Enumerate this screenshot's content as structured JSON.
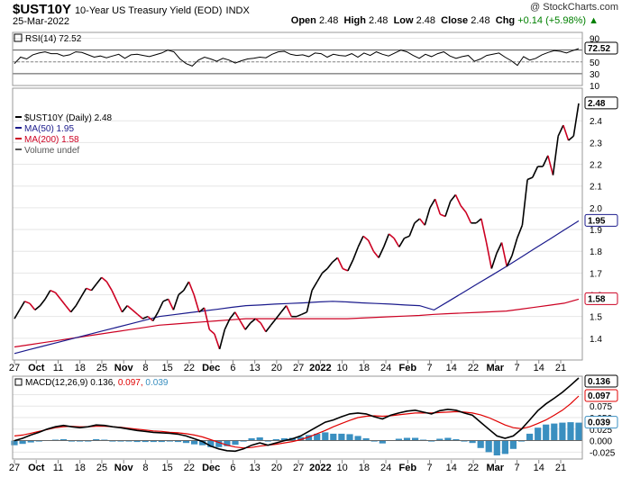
{
  "header": {
    "symbol": "$UST10Y",
    "name": "10-Year US Treasury Yield (EOD)",
    "exchange": "INDX",
    "date": "25-Mar-2022",
    "brand": "@ StockCharts.com",
    "open_label": "Open",
    "open": "2.48",
    "high_label": "High",
    "high": "2.48",
    "low_label": "Low",
    "low": "2.48",
    "close_label": "Close",
    "close": "2.48",
    "chg_label": "Chg",
    "chg": "+0.14 (+5.98%)",
    "chg_arrow": "▲"
  },
  "colors": {
    "price": "#000000",
    "ma50": "#1a1a8c",
    "ma200": "#cc0022",
    "rsi": "#000000",
    "macd": "#000000",
    "signal": "#e00000",
    "hist": "#3a8fc0",
    "grid": "#e6e6e6"
  },
  "chart_data": [
    {
      "type": "line",
      "panel": "rsi",
      "legend": "RSI(14) 72.52",
      "value_badge": "72.52",
      "ylim": [
        10,
        100
      ],
      "yticks": [
        90,
        70,
        50,
        30,
        10
      ],
      "yticklabels": [
        "90",
        "70",
        "50",
        "30",
        "10"
      ],
      "reference_lines": [
        70,
        50,
        30
      ],
      "series": [
        {
          "name": "RSI(14)",
          "values": [
            47,
            58,
            55,
            62,
            65,
            67,
            64,
            64,
            60,
            62,
            67,
            66,
            62,
            58,
            60,
            57,
            60,
            63,
            56,
            62,
            63,
            61,
            59,
            62,
            65,
            70,
            67,
            55,
            47,
            43,
            53,
            58,
            55,
            51,
            56,
            53,
            48,
            52,
            55,
            56,
            58,
            57,
            63,
            67,
            68,
            63,
            61,
            62,
            59,
            65,
            64,
            58,
            63,
            61,
            60,
            64,
            58,
            65,
            61,
            67,
            63,
            60,
            65,
            70,
            67,
            61,
            56,
            63,
            59,
            64,
            67,
            60,
            56,
            59,
            61,
            51,
            55,
            61,
            63,
            65,
            58,
            52,
            44,
            59,
            53,
            56,
            62,
            66,
            69,
            68,
            65,
            69,
            72.52
          ]
        }
      ]
    },
    {
      "type": "line",
      "panel": "price",
      "ylim": [
        1.3,
        2.55
      ],
      "yticks": [
        1.4,
        1.5,
        1.6,
        1.7,
        1.8,
        1.9,
        2.0,
        2.1,
        2.2,
        2.3,
        2.4
      ],
      "yticklabels": [
        "1.4",
        "1.5",
        "1.6",
        "1.7",
        "1.8",
        "1.9",
        "2.0",
        "2.1",
        "2.2",
        "2.3",
        "2.4"
      ],
      "value_badges": [
        "2.48",
        "1.95",
        "1.58"
      ],
      "legend": [
        {
          "label": "$UST10Y (Daily) 2.48",
          "color": "#000000"
        },
        {
          "label": "MA(50) 1.95",
          "color": "#1a1a8c"
        },
        {
          "label": "MA(200) 1.58",
          "color": "#cc0022"
        },
        {
          "label": "Volume undef",
          "color": "#555555"
        }
      ],
      "series": [
        {
          "name": "$UST10Y",
          "values": [
            1.49,
            1.53,
            1.57,
            1.56,
            1.53,
            1.55,
            1.58,
            1.62,
            1.61,
            1.58,
            1.55,
            1.52,
            1.55,
            1.59,
            1.63,
            1.62,
            1.65,
            1.68,
            1.66,
            1.62,
            1.57,
            1.52,
            1.55,
            1.53,
            1.51,
            1.49,
            1.5,
            1.48,
            1.52,
            1.57,
            1.58,
            1.53,
            1.6,
            1.62,
            1.66,
            1.6,
            1.52,
            1.54,
            1.44,
            1.42,
            1.35,
            1.44,
            1.49,
            1.52,
            1.48,
            1.44,
            1.47,
            1.49,
            1.47,
            1.43,
            1.46,
            1.49,
            1.52,
            1.55,
            1.5,
            1.5,
            1.51,
            1.52,
            1.62,
            1.66,
            1.7,
            1.72,
            1.75,
            1.77,
            1.72,
            1.71,
            1.76,
            1.82,
            1.87,
            1.85,
            1.8,
            1.77,
            1.82,
            1.88,
            1.86,
            1.82,
            1.86,
            1.87,
            1.93,
            1.95,
            1.92,
            2.0,
            2.04,
            1.97,
            1.96,
            2.03,
            2.06,
            2.01,
            1.98,
            1.93,
            1.93,
            1.95,
            1.84,
            1.72,
            1.79,
            1.84,
            1.73,
            1.78,
            1.86,
            1.92,
            2.13,
            2.14,
            2.19,
            2.19,
            2.24,
            2.15,
            2.33,
            2.38,
            2.31,
            2.33,
            2.48
          ]
        },
        {
          "name": "MA(50)",
          "values": [
            1.33,
            1.347,
            1.364,
            1.381,
            1.398,
            1.415,
            1.432,
            1.449,
            1.466,
            1.483,
            1.5,
            1.508,
            1.517,
            1.525,
            1.533,
            1.542,
            1.55,
            1.553,
            1.557,
            1.56,
            1.563,
            1.567,
            1.57,
            1.567,
            1.563,
            1.56,
            1.557,
            1.553,
            1.55,
            1.53,
            1.57,
            1.61,
            1.65,
            1.69,
            1.73,
            1.772,
            1.814,
            1.856,
            1.898,
            1.94
          ]
        },
        {
          "name": "MA(200)",
          "values": [
            1.36,
            1.37,
            1.38,
            1.39,
            1.4,
            1.41,
            1.42,
            1.43,
            1.44,
            1.45,
            1.46,
            1.465,
            1.47,
            1.475,
            1.48,
            1.485,
            1.49,
            1.49,
            1.49,
            1.49,
            1.49,
            1.49,
            1.49,
            1.49,
            1.493,
            1.496,
            1.499,
            1.502,
            1.505,
            1.51,
            1.513,
            1.516,
            1.519,
            1.522,
            1.525,
            1.534,
            1.543,
            1.552,
            1.561,
            1.58
          ]
        }
      ]
    },
    {
      "type": "line",
      "panel": "macd",
      "legend": [
        {
          "label": "MACD(12,26,9) 0.136,",
          "color": "#000000"
        },
        {
          "label": " 0.097,",
          "color": "#e00000"
        },
        {
          "label": " 0.039",
          "color": "#3a8fc0"
        }
      ],
      "ylim": [
        -0.04,
        0.14
      ],
      "yticks": [
        0.1,
        0.075,
        0.05,
        0.025,
        0.0,
        -0.025
      ],
      "yticklabels": [
        "0.100",
        "0.075",
        "0.050",
        "0.025",
        "0.000",
        "-0.025"
      ],
      "value_badges": [
        "0.136",
        "0.097",
        "0.039"
      ],
      "series": [
        {
          "name": "MACD",
          "values": [
            0.0,
            0.005,
            0.012,
            0.018,
            0.025,
            0.03,
            0.033,
            0.03,
            0.028,
            0.03,
            0.034,
            0.033,
            0.03,
            0.028,
            0.025,
            0.022,
            0.02,
            0.018,
            0.017,
            0.016,
            0.014,
            0.01,
            0.004,
            -0.002,
            -0.012,
            -0.018,
            -0.022,
            -0.023,
            -0.018,
            -0.01,
            -0.005,
            -0.01,
            -0.005,
            0.0,
            0.004,
            0.01,
            0.02,
            0.03,
            0.04,
            0.045,
            0.052,
            0.058,
            0.06,
            0.058,
            0.052,
            0.047,
            0.055,
            0.06,
            0.064,
            0.066,
            0.062,
            0.058,
            0.065,
            0.068,
            0.066,
            0.06,
            0.055,
            0.04,
            0.025,
            0.01,
            0.005,
            0.01,
            0.025,
            0.045,
            0.065,
            0.08,
            0.092,
            0.105,
            0.12,
            0.136
          ]
        },
        {
          "name": "Signal",
          "values": [
            0.01,
            0.012,
            0.016,
            0.02,
            0.024,
            0.028,
            0.03,
            0.031,
            0.03,
            0.03,
            0.031,
            0.031,
            0.03,
            0.029,
            0.027,
            0.025,
            0.023,
            0.021,
            0.02,
            0.018,
            0.017,
            0.015,
            0.012,
            0.008,
            0.002,
            -0.004,
            -0.01,
            -0.014,
            -0.016,
            -0.015,
            -0.012,
            -0.01,
            -0.008,
            -0.005,
            -0.002,
            0.002,
            0.008,
            0.015,
            0.022,
            0.03,
            0.037,
            0.044,
            0.05,
            0.053,
            0.054,
            0.053,
            0.054,
            0.056,
            0.058,
            0.06,
            0.06,
            0.06,
            0.061,
            0.062,
            0.063,
            0.062,
            0.06,
            0.056,
            0.05,
            0.042,
            0.034,
            0.028,
            0.026,
            0.03,
            0.037,
            0.045,
            0.055,
            0.066,
            0.08,
            0.097
          ]
        },
        {
          "name": "Histogram",
          "values": [
            -0.01,
            -0.007,
            -0.004,
            -0.002,
            0.001,
            0.002,
            0.003,
            -0.001,
            -0.002,
            0.0,
            0.003,
            0.002,
            0.0,
            -0.001,
            -0.002,
            -0.003,
            -0.003,
            -0.003,
            -0.003,
            -0.002,
            -0.003,
            -0.005,
            -0.008,
            -0.01,
            -0.014,
            -0.014,
            -0.012,
            -0.009,
            -0.002,
            0.005,
            0.007,
            0.0,
            0.003,
            0.005,
            0.006,
            0.008,
            0.012,
            0.015,
            0.018,
            0.015,
            0.015,
            0.014,
            0.01,
            0.005,
            -0.002,
            -0.006,
            0.001,
            0.004,
            0.006,
            0.006,
            0.002,
            -0.002,
            0.004,
            0.006,
            0.003,
            -0.002,
            -0.005,
            -0.016,
            -0.025,
            -0.032,
            -0.029,
            -0.018,
            -0.001,
            0.015,
            0.028,
            0.035,
            0.037,
            0.039,
            0.04,
            0.039
          ]
        }
      ]
    }
  ],
  "x_axis": {
    "ticklabels": [
      "27",
      "Oct",
      "11",
      "18",
      "25",
      "Nov",
      "8",
      "15",
      "22",
      "Dec",
      "6",
      "13",
      "20",
      "27",
      "2022",
      "10",
      "18",
      "24",
      "Feb",
      "7",
      "14",
      "22",
      "Mar",
      "7",
      "14",
      "21"
    ],
    "bold": [
      "Oct",
      "Nov",
      "Dec",
      "2022",
      "Feb",
      "Mar"
    ]
  }
}
